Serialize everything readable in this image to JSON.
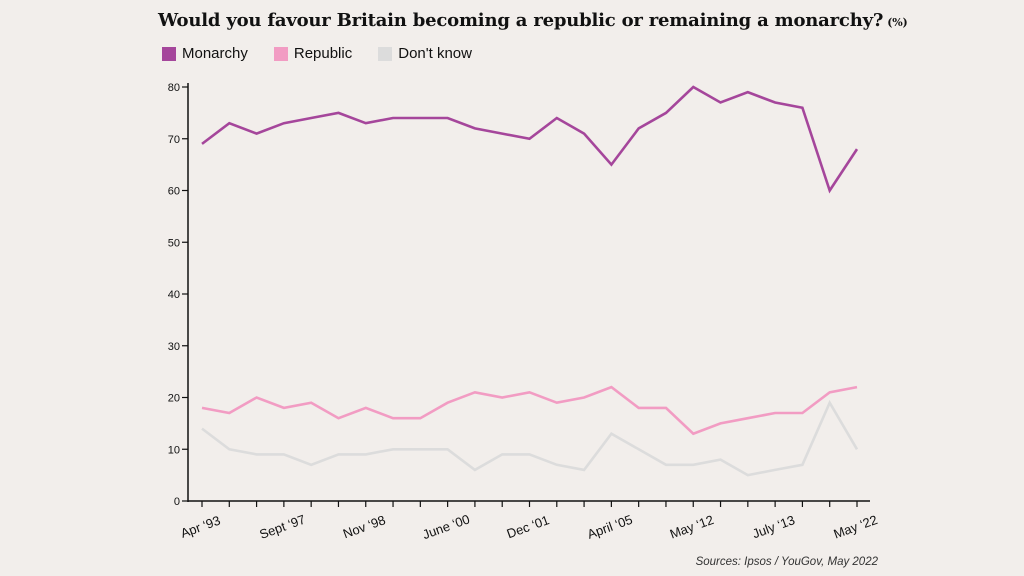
{
  "chart_data": {
    "type": "line",
    "title": "Would you favour Britain becoming a republic or remaining a monarchy?",
    "title_unit": "(%)",
    "xlabel": "",
    "ylabel": "",
    "ylim": [
      0,
      80
    ],
    "yticks": [
      0,
      10,
      20,
      30,
      40,
      50,
      60,
      70,
      80
    ],
    "grid": false,
    "legend_position": "top-left",
    "x_tick_labels": [
      {
        "index": 0,
        "label": "Apr ‘93"
      },
      {
        "index": 3,
        "label": "Sept ‘97"
      },
      {
        "index": 6,
        "label": "Nov ‘98"
      },
      {
        "index": 9,
        "label": "June ‘00"
      },
      {
        "index": 12,
        "label": "Dec ‘01"
      },
      {
        "index": 15,
        "label": "April ‘05"
      },
      {
        "index": 18,
        "label": "May ‘12"
      },
      {
        "index": 21,
        "label": "July ‘13"
      },
      {
        "index": 24,
        "label": "May ‘22"
      }
    ],
    "series": [
      {
        "name": "Monarchy",
        "color": "#a5469b",
        "values": [
          69,
          73,
          71,
          73,
          74,
          75,
          73,
          74,
          74,
          74,
          72,
          71,
          70,
          74,
          71,
          65,
          72,
          75,
          80,
          77,
          79,
          77,
          76,
          60,
          68
        ]
      },
      {
        "name": "Republic",
        "color": "#f29cc3",
        "values": [
          18,
          17,
          20,
          18,
          19,
          16,
          18,
          16,
          16,
          19,
          21,
          20,
          21,
          19,
          20,
          22,
          18,
          18,
          13,
          15,
          16,
          17,
          17,
          21,
          22
        ]
      },
      {
        "name": "Don't know",
        "color": "#dcdcdc",
        "values": [
          14,
          10,
          9,
          9,
          7,
          9,
          9,
          10,
          10,
          10,
          6,
          9,
          9,
          7,
          6,
          13,
          10,
          7,
          7,
          8,
          5,
          6,
          7,
          19,
          10
        ]
      }
    ],
    "source": "Sources: Ipsos / YouGov, May 2022"
  }
}
